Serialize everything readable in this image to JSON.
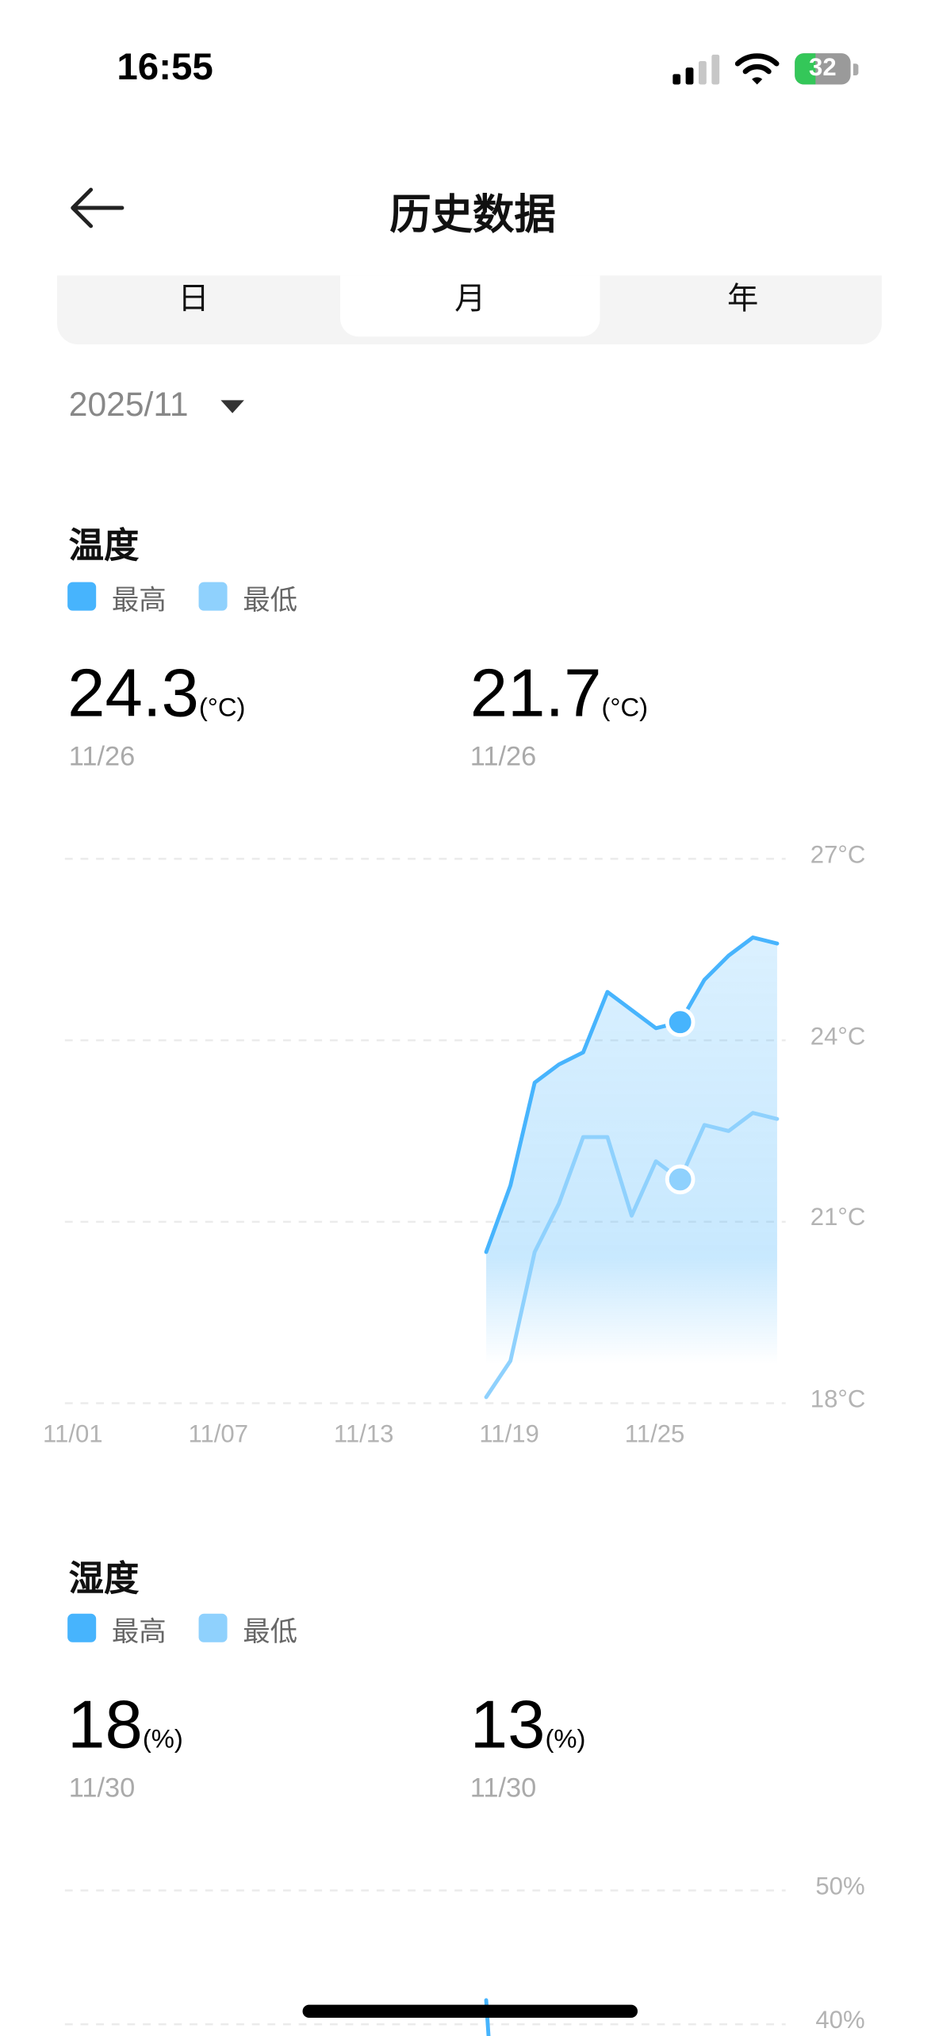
{
  "status_bar": {
    "time": "16:55",
    "battery": "32"
  },
  "header": {
    "title": "历史数据",
    "back_icon": "arrow-left-icon"
  },
  "tabs": [
    {
      "label": "日"
    },
    {
      "label": "月",
      "active": true
    },
    {
      "label": "年"
    }
  ],
  "date_selector": {
    "value": "2025/11"
  },
  "temperature": {
    "title": "温度",
    "legend": [
      {
        "label": "最高",
        "color": "#47b4fd"
      },
      {
        "label": "最低",
        "color": "#8fd1fd"
      }
    ],
    "high": {
      "value": "24.3",
      "unit": "(°C)",
      "date": "11/26"
    },
    "low": {
      "value": "21.7",
      "unit": "(°C)",
      "date": "11/26"
    }
  },
  "humidity": {
    "title": "湿度",
    "legend": [
      {
        "label": "最高",
        "color": "#47b4fd"
      },
      {
        "label": "最低",
        "color": "#8fd1fd"
      }
    ],
    "high": {
      "value": "18",
      "unit": "(%)",
      "date": "11/30"
    },
    "low": {
      "value": "13",
      "unit": "(%)",
      "date": "11/30"
    }
  },
  "chart_data": [
    {
      "type": "line",
      "x_tick_labels": [
        "11/01",
        "11/07",
        "11/13",
        "11/19",
        "11/25"
      ],
      "y_tick_labels": [
        "27°C",
        "24°C",
        "21°C",
        "18°C"
      ],
      "ylim": [
        18,
        27
      ],
      "xlim": [
        "11/01",
        "11/30"
      ],
      "grid": true,
      "x": [
        "11/18",
        "11/19",
        "11/20",
        "11/21",
        "11/22",
        "11/23",
        "11/24",
        "11/25",
        "11/26",
        "11/27",
        "11/28",
        "11/29",
        "11/30"
      ],
      "series": [
        {
          "name": "最高",
          "color": "#47b4fd",
          "values": [
            20.5,
            21.6,
            23.3,
            23.6,
            23.8,
            24.8,
            24.5,
            24.2,
            24.3,
            25.0,
            25.4,
            25.7,
            25.6
          ],
          "highlight": "11/26"
        },
        {
          "name": "最低",
          "color": "#8fd1fd",
          "values": [
            18.1,
            18.7,
            20.5,
            21.3,
            22.4,
            22.4,
            21.1,
            22.0,
            21.7,
            22.6,
            22.5,
            22.8,
            22.7
          ],
          "highlight": "11/26"
        }
      ]
    },
    {
      "type": "line",
      "y_tick_labels": [
        "50%",
        "40%"
      ],
      "grid": true,
      "x": [
        "11/18"
      ],
      "series": [
        {
          "name": "最高",
          "color": "#47b4fd",
          "values": [
            41.8
          ]
        }
      ]
    }
  ]
}
